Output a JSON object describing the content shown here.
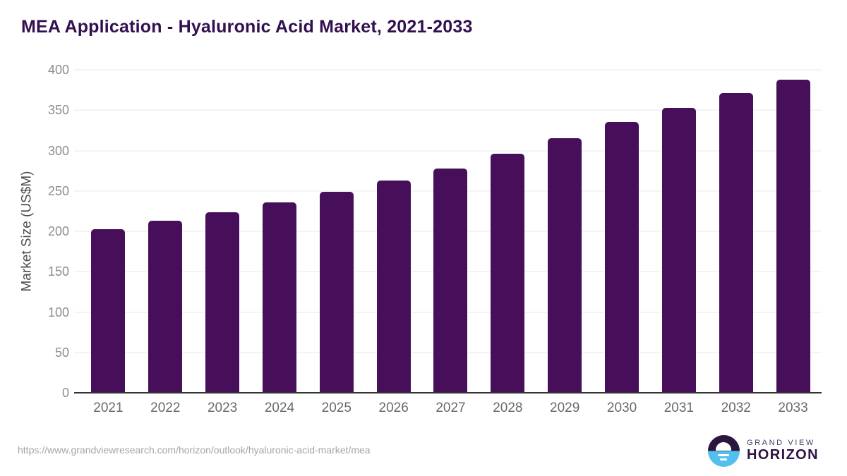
{
  "chart_data": {
    "type": "bar",
    "title": "MEA Application - Hyaluronic Acid Market, 2021-2033",
    "categories": [
      "2021",
      "2022",
      "2023",
      "2024",
      "2025",
      "2026",
      "2027",
      "2028",
      "2029",
      "2030",
      "2031",
      "2032",
      "2033"
    ],
    "values": [
      203,
      213,
      224,
      236,
      249,
      263,
      278,
      296,
      315,
      335,
      353,
      371,
      388
    ],
    "xlabel": "",
    "ylabel": "Market Size (US$M)",
    "ylim": [
      0,
      400
    ],
    "yticks": [
      0,
      50,
      100,
      150,
      200,
      250,
      300,
      350,
      400
    ],
    "grid": "horizontal",
    "legend": "none",
    "bar_color": "#470f5a"
  },
  "colors": {
    "bar": "#470f5a",
    "title": "#321050",
    "gridline": "#e8e8e8",
    "axis_line": "#333333",
    "y_tick_label": "#8e8e8e",
    "x_tick_label": "#6a6a6a",
    "logo_dark_purple": "#2a1740",
    "logo_blue": "#53bfec"
  },
  "footer": {
    "source_url": "https://www.grandviewresearch.com/horizon/outlook/hyaluronic-acid-market/mea",
    "logo": {
      "line1": "GRAND VIEW",
      "line2": "HORIZON"
    }
  }
}
